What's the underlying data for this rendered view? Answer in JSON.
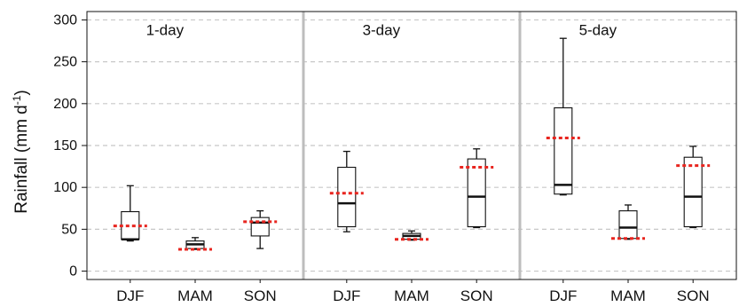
{
  "chart_data": {
    "type": "box",
    "ylabel": "Rainfall (mm d",
    "ylabel_sup": "-1",
    "ylabel_close": ")",
    "ylim": [
      -10,
      310
    ],
    "yticks": [
      0,
      50,
      100,
      150,
      200,
      250,
      300
    ],
    "grid": true,
    "categories": [
      "DJF",
      "MAM",
      "SON"
    ],
    "panels": [
      {
        "title": "1-day",
        "boxes": [
          {
            "category": "DJF",
            "min": 36,
            "q1": 38,
            "median": 38,
            "q3": 71,
            "max": 102,
            "mean": 54
          },
          {
            "category": "MAM",
            "min": 26,
            "q1": 27,
            "median": 32,
            "q3": 36,
            "max": 40,
            "mean": 26
          },
          {
            "category": "SON",
            "min": 27,
            "q1": 42,
            "median": 58,
            "q3": 64,
            "max": 72,
            "mean": 59
          }
        ]
      },
      {
        "title": "3-day",
        "boxes": [
          {
            "category": "DJF",
            "min": 47,
            "q1": 53,
            "median": 81,
            "q3": 124,
            "max": 143,
            "mean": 93
          },
          {
            "category": "MAM",
            "min": 37,
            "q1": 38,
            "median": 42,
            "q3": 45,
            "max": 48,
            "mean": 38
          },
          {
            "category": "SON",
            "min": 52,
            "q1": 53,
            "median": 89,
            "q3": 134,
            "max": 146,
            "mean": 124
          }
        ]
      },
      {
        "title": "5-day",
        "boxes": [
          {
            "category": "DJF",
            "min": 91,
            "q1": 92,
            "median": 103,
            "q3": 195,
            "max": 278,
            "mean": 159
          },
          {
            "category": "MAM",
            "min": 38,
            "q1": 39,
            "median": 52,
            "q3": 72,
            "max": 79,
            "mean": 39
          },
          {
            "category": "SON",
            "min": 52,
            "q1": 53,
            "median": 89,
            "q3": 136,
            "max": 149,
            "mean": 126
          }
        ]
      }
    ],
    "colors": {
      "box": "#111111",
      "mean": "#e8251f",
      "grid": "#c8c8c8",
      "separator": "#bdbdbd",
      "frame": "#111111"
    }
  }
}
